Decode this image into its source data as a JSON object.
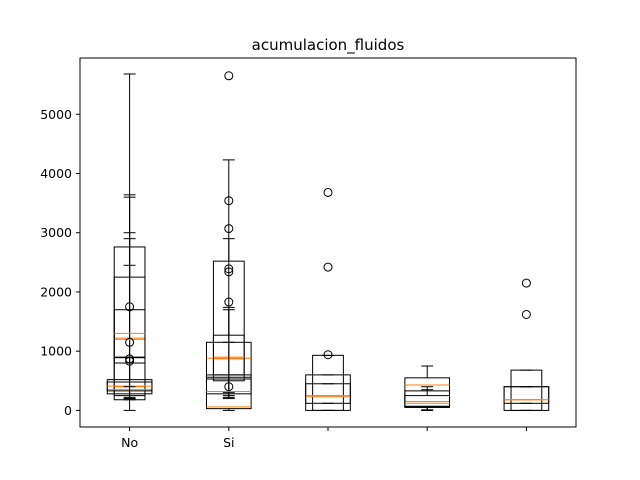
{
  "chart_data": {
    "type": "boxplot",
    "title": "acumulacion_fluidos",
    "xlabel": "",
    "ylabel": "",
    "categories": [
      "No",
      "Si",
      "",
      "",
      ""
    ],
    "ylim": [
      -280,
      5950
    ],
    "yticks": [
      0,
      1000,
      2000,
      3000,
      4000,
      5000
    ],
    "ytick_labels": [
      "0",
      "1000",
      "2000",
      "3000",
      "4000",
      "5000"
    ],
    "grid": false,
    "colors": {
      "box": "#000000",
      "median": "#ff7f0e",
      "flier": "#000000"
    },
    "groups": [
      {
        "category": "No",
        "boxes": [
          {
            "q1": 180,
            "median": 400,
            "q3": 890,
            "whisker_low": 0,
            "whisker_high": 5680,
            "cap_width": 0.06
          },
          {
            "q1": 250,
            "median": 1220,
            "q3": 2760,
            "whisker_low": 180,
            "whisker_high": 3640,
            "cap_width": 0.06
          },
          {
            "q1": 280,
            "median": 350,
            "q3": 520,
            "whisker_low": 200,
            "whisker_high": 3600,
            "cap_width": 0.06
          },
          {
            "q1": 330,
            "median": 410,
            "q3": 480,
            "whisker_low": 220,
            "whisker_high": 2900,
            "cap_width": 0.06
          },
          {
            "q1": 800,
            "median": 1200,
            "q3": 1700,
            "whisker_low": 200,
            "whisker_high": 2450,
            "cap_width": 0.06
          },
          {
            "q1": 900,
            "median": 1300,
            "q3": 2250,
            "whisker_low": 400,
            "whisker_high": 3000,
            "cap_width": 0.06
          }
        ],
        "fliers": [
          1750,
          1150,
          870,
          830
        ]
      },
      {
        "category": "Si",
        "boxes": [
          {
            "q1": 30,
            "median": 60,
            "q3": 530,
            "whisker_low": 0,
            "whisker_high": 4230,
            "cap_width": 0.06
          },
          {
            "q1": 500,
            "median": 870,
            "q3": 1270,
            "whisker_low": 200,
            "whisker_high": 1740,
            "cap_width": 0.06
          },
          {
            "q1": 560,
            "median": 880,
            "q3": 1150,
            "whisker_low": 250,
            "whisker_high": 1700,
            "cap_width": 0.06
          },
          {
            "q1": 600,
            "median": 900,
            "q3": 2520,
            "whisker_low": 300,
            "whisker_high": 2900,
            "cap_width": 0.06
          },
          {
            "q1": 280,
            "median": 320,
            "q3": 600,
            "whisker_low": 220,
            "whisker_high": 1150,
            "cap_width": 0.06
          }
        ],
        "fliers": [
          5650,
          3540,
          3070,
          2390,
          2340,
          1830,
          400
        ]
      },
      {
        "category": "",
        "boxes": [
          {
            "q1": 0,
            "median": 250,
            "q3": 930,
            "whisker_low": 0,
            "whisker_high": 930,
            "cap_width": 0.06
          },
          {
            "q1": 0,
            "median": 250,
            "q3": 600,
            "whisker_low": 0,
            "whisker_high": 600,
            "cap_width": 0.06
          },
          {
            "q1": 120,
            "median": 230,
            "q3": 450,
            "whisker_low": 120,
            "whisker_high": 450,
            "cap_width": 0.06
          }
        ],
        "fliers": [
          3680,
          2420,
          940
        ]
      },
      {
        "category": "",
        "boxes": [
          {
            "q1": 50,
            "median": 430,
            "q3": 550,
            "whisker_low": 0,
            "whisker_high": 750,
            "cap_width": 0.06
          },
          {
            "q1": 60,
            "median": 150,
            "q3": 330,
            "whisker_low": 0,
            "whisker_high": 400,
            "cap_width": 0.06
          },
          {
            "q1": 70,
            "median": 120,
            "q3": 250,
            "whisker_low": 10,
            "whisker_high": 350,
            "cap_width": 0.06
          }
        ],
        "fliers": []
      },
      {
        "category": "",
        "boxes": [
          {
            "q1": 0,
            "median": 180,
            "q3": 680,
            "whisker_low": 0,
            "whisker_high": 680,
            "cap_width": 0.06
          },
          {
            "q1": 0,
            "median": 180,
            "q3": 400,
            "whisker_low": 0,
            "whisker_high": 400,
            "cap_width": 0.06
          },
          {
            "q1": 120,
            "median": 180,
            "q3": 400,
            "whisker_low": 120,
            "whisker_high": 400,
            "cap_width": 0.06
          }
        ],
        "fliers": [
          2150,
          1620
        ]
      }
    ]
  }
}
